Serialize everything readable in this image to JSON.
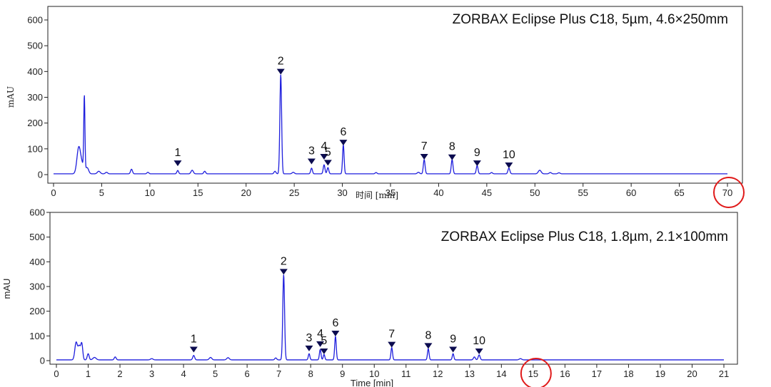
{
  "chart_data": [
    {
      "type": "line",
      "title": "ZORBAX Eclipse Plus C18,   5µm,   4.6×250mm",
      "xlabel": "时间 [min]",
      "ylabel": "mAU",
      "xlim": [
        0,
        70
      ],
      "ylim": [
        0,
        600
      ],
      "xticks": [
        0,
        5,
        10,
        15,
        20,
        25,
        30,
        35,
        40,
        45,
        50,
        55,
        60,
        65,
        70
      ],
      "yticks": [
        0,
        100,
        200,
        300,
        400,
        500,
        600
      ],
      "grid": false,
      "line_color": "#1f1fdd",
      "marker_color": "#0b0b4f",
      "highlight_color": "#e01a1a",
      "highlighted_tick": 70,
      "baseline": 3,
      "peaks": [
        {
          "t": 2.6,
          "h": 85,
          "w": 0.18
        },
        {
          "t": 2.9,
          "h": 40,
          "w": 0.25
        },
        {
          "t": 3.2,
          "h": 285,
          "w": 0.06
        },
        {
          "t": 3.5,
          "h": 22,
          "w": 0.15
        },
        {
          "t": 4.7,
          "h": 10,
          "w": 0.15
        },
        {
          "t": 5.5,
          "h": 6,
          "w": 0.12
        },
        {
          "t": 8.1,
          "h": 18,
          "w": 0.1
        },
        {
          "t": 9.8,
          "h": 6,
          "w": 0.1
        },
        {
          "t": 12.9,
          "h": 13,
          "w": 0.09
        },
        {
          "t": 14.4,
          "h": 14,
          "w": 0.12
        },
        {
          "t": 15.7,
          "h": 10,
          "w": 0.1
        },
        {
          "t": 23.0,
          "h": 10,
          "w": 0.1
        },
        {
          "t": 23.6,
          "h": 385,
          "w": 0.09
        },
        {
          "t": 24.9,
          "h": 6,
          "w": 0.12
        },
        {
          "t": 26.8,
          "h": 22,
          "w": 0.09
        },
        {
          "t": 28.1,
          "h": 35,
          "w": 0.09
        },
        {
          "t": 28.5,
          "h": 24,
          "w": 0.09
        },
        {
          "t": 30.1,
          "h": 113,
          "w": 0.08
        },
        {
          "t": 33.5,
          "h": 5,
          "w": 0.1
        },
        {
          "t": 37.9,
          "h": 6,
          "w": 0.12
        },
        {
          "t": 38.5,
          "h": 55,
          "w": 0.09
        },
        {
          "t": 41.4,
          "h": 55,
          "w": 0.09
        },
        {
          "t": 44.0,
          "h": 32,
          "w": 0.09
        },
        {
          "t": 45.5,
          "h": 5,
          "w": 0.1
        },
        {
          "t": 47.3,
          "h": 22,
          "w": 0.1
        },
        {
          "t": 50.5,
          "h": 14,
          "w": 0.15
        },
        {
          "t": 51.6,
          "h": 5,
          "w": 0.12
        },
        {
          "t": 52.5,
          "h": 4,
          "w": 0.12
        }
      ],
      "labeled_peaks": [
        {
          "label": "1",
          "t": 12.9,
          "marker_y": 33
        },
        {
          "label": "2",
          "t": 23.6,
          "marker_y": 388
        },
        {
          "label": "3",
          "t": 26.8,
          "marker_y": 40
        },
        {
          "label": "4",
          "t": 28.1,
          "marker_y": 58
        },
        {
          "label": "5",
          "t": 28.5,
          "marker_y": 35
        },
        {
          "label": "6",
          "t": 30.1,
          "marker_y": 113
        },
        {
          "label": "7",
          "t": 38.5,
          "marker_y": 58
        },
        {
          "label": "8",
          "t": 41.4,
          "marker_y": 56
        },
        {
          "label": "9",
          "t": 44.0,
          "marker_y": 33
        },
        {
          "label": "10",
          "t": 47.3,
          "marker_y": 25
        }
      ]
    },
    {
      "type": "line",
      "title": "ZORBAX Eclipse Plus C18,   1.8µm,   2.1×100mm",
      "xlabel": "Time [min]",
      "ylabel": "mAU",
      "xlim": [
        0,
        21
      ],
      "ylim": [
        0,
        600
      ],
      "xticks": [
        0,
        1,
        2,
        3,
        4,
        5,
        6,
        7,
        8,
        9,
        10,
        11,
        12,
        13,
        14,
        15,
        16,
        17,
        18,
        19,
        20,
        21
      ],
      "yticks": [
        0,
        100,
        200,
        300,
        400,
        500,
        600
      ],
      "grid": false,
      "line_color": "#1f1fdd",
      "marker_color": "#0b0b4f",
      "highlight_color": "#e01a1a",
      "highlighted_tick": 15,
      "baseline": 3,
      "peaks": [
        {
          "t": 0.62,
          "h": 70,
          "w": 0.04
        },
        {
          "t": 0.72,
          "h": 55,
          "w": 0.04
        },
        {
          "t": 0.8,
          "h": 62,
          "w": 0.03
        },
        {
          "t": 1.0,
          "h": 25,
          "w": 0.03
        },
        {
          "t": 1.2,
          "h": 10,
          "w": 0.05
        },
        {
          "t": 1.85,
          "h": 12,
          "w": 0.03
        },
        {
          "t": 3.0,
          "h": 5,
          "w": 0.04
        },
        {
          "t": 4.32,
          "h": 18,
          "w": 0.03
        },
        {
          "t": 4.85,
          "h": 10,
          "w": 0.04
        },
        {
          "t": 5.4,
          "h": 9,
          "w": 0.04
        },
        {
          "t": 6.9,
          "h": 8,
          "w": 0.03
        },
        {
          "t": 7.15,
          "h": 345,
          "w": 0.028
        },
        {
          "t": 7.95,
          "h": 25,
          "w": 0.025
        },
        {
          "t": 8.3,
          "h": 42,
          "w": 0.025
        },
        {
          "t": 8.42,
          "h": 22,
          "w": 0.025
        },
        {
          "t": 8.78,
          "h": 95,
          "w": 0.025
        },
        {
          "t": 10.55,
          "h": 50,
          "w": 0.025
        },
        {
          "t": 11.7,
          "h": 45,
          "w": 0.025
        },
        {
          "t": 12.48,
          "h": 25,
          "w": 0.025
        },
        {
          "t": 13.15,
          "h": 12,
          "w": 0.03
        },
        {
          "t": 13.3,
          "h": 20,
          "w": 0.03
        },
        {
          "t": 14.6,
          "h": 5,
          "w": 0.04
        }
      ],
      "labeled_peaks": [
        {
          "label": "1",
          "t": 4.32,
          "marker_y": 33
        },
        {
          "label": "2",
          "t": 7.15,
          "marker_y": 348
        },
        {
          "label": "3",
          "t": 7.95,
          "marker_y": 38
        },
        {
          "label": "4",
          "t": 8.3,
          "marker_y": 55
        },
        {
          "label": "5",
          "t": 8.42,
          "marker_y": 26
        },
        {
          "label": "6",
          "t": 8.78,
          "marker_y": 98
        },
        {
          "label": "7",
          "t": 10.55,
          "marker_y": 53
        },
        {
          "label": "8",
          "t": 11.7,
          "marker_y": 48
        },
        {
          "label": "9",
          "t": 12.48,
          "marker_y": 33
        },
        {
          "label": "10",
          "t": 13.3,
          "marker_y": 26
        }
      ]
    }
  ]
}
